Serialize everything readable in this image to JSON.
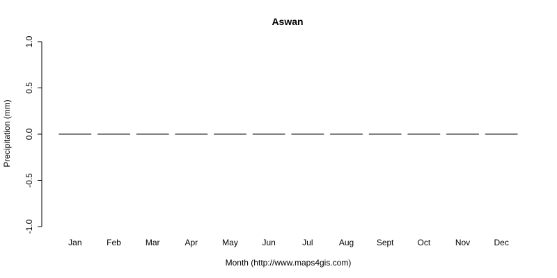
{
  "chart_data": {
    "type": "bar",
    "title": "Aswan",
    "xlabel": "Month (http://www.maps4gis.com)",
    "ylabel": "Precipitation (mm)",
    "categories": [
      "Jan",
      "Feb",
      "Mar",
      "Apr",
      "May",
      "Jun",
      "Jul",
      "Aug",
      "Sept",
      "Oct",
      "Nov",
      "Dec"
    ],
    "values": [
      0,
      0,
      0,
      0,
      0,
      0,
      0,
      0,
      0,
      0,
      0,
      0
    ],
    "ylim": [
      -1.0,
      1.0
    ],
    "yticks": [
      "-1.0",
      "-0.5",
      "0.0",
      "0.5",
      "1.0"
    ],
    "grid": false,
    "legend": "none",
    "bar_color": "#000000"
  }
}
